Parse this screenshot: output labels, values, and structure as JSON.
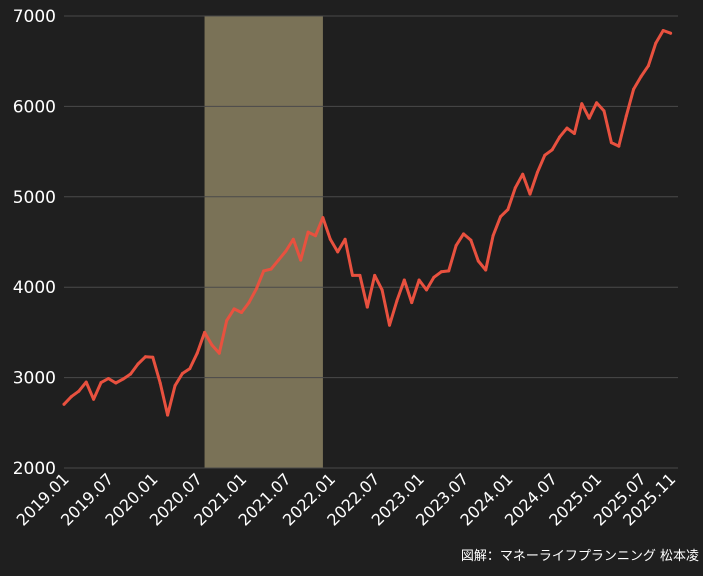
{
  "credit": "図解：マネーライフプランニング 松本凌",
  "colors": {
    "background": "#1f1f1f",
    "line": "#e8513f",
    "band": "#7a7257",
    "grid": "#4a4a4a",
    "text": "#ffffff"
  },
  "chart_data": {
    "type": "line",
    "title": "",
    "xlabel": "",
    "ylabel": "",
    "ylim": [
      2000,
      7000
    ],
    "yticks": [
      2000,
      3000,
      4000,
      5000,
      6000,
      7000
    ],
    "xlim": [
      "2019.01",
      "2025.12"
    ],
    "xticks": [
      "2019.01",
      "2019.07",
      "2020.01",
      "2020.07",
      "2021.01",
      "2021.07",
      "2022.01",
      "2022.07",
      "2023.01",
      "2023.07",
      "2024.01",
      "2024.07",
      "2025.01",
      "2025.07",
      "2025.11"
    ],
    "grid": "horizontal",
    "highlight_band": {
      "x_start": "2020.08",
      "x_end": "2021.12"
    },
    "series": [
      {
        "x": [
          "2019.01",
          "2019.02",
          "2019.03",
          "2019.04",
          "2019.05",
          "2019.06",
          "2019.07",
          "2019.08",
          "2019.09",
          "2019.10",
          "2019.11",
          "2019.12",
          "2020.01",
          "2020.02",
          "2020.03",
          "2020.04",
          "2020.05",
          "2020.06",
          "2020.07",
          "2020.08",
          "2020.09",
          "2020.10",
          "2020.11",
          "2020.12",
          "2021.01",
          "2021.02",
          "2021.03",
          "2021.04",
          "2021.05",
          "2021.06",
          "2021.07",
          "2021.08",
          "2021.09",
          "2021.10",
          "2021.11",
          "2021.12",
          "2022.01",
          "2022.02",
          "2022.03",
          "2022.04",
          "2022.05",
          "2022.06",
          "2022.07",
          "2022.08",
          "2022.09",
          "2022.10",
          "2022.11",
          "2022.12",
          "2023.01",
          "2023.02",
          "2023.03",
          "2023.04",
          "2023.05",
          "2023.06",
          "2023.07",
          "2023.08",
          "2023.09",
          "2023.10",
          "2023.11",
          "2023.12",
          "2024.01",
          "2024.02",
          "2024.03",
          "2024.04",
          "2024.05",
          "2024.06",
          "2024.07",
          "2024.08",
          "2024.09",
          "2024.10",
          "2024.11",
          "2024.12",
          "2025.01",
          "2025.02",
          "2025.03",
          "2025.04",
          "2025.05",
          "2025.06",
          "2025.07",
          "2025.08",
          "2025.09",
          "2025.10",
          "2025.11"
        ],
        "values": [
          2705,
          2790,
          2850,
          2950,
          2760,
          2945,
          2990,
          2940,
          2985,
          3040,
          3150,
          3230,
          3225,
          2940,
          2585,
          2910,
          3045,
          3100,
          3270,
          3500,
          3360,
          3270,
          3630,
          3760,
          3720,
          3830,
          3980,
          4180,
          4200,
          4300,
          4400,
          4530,
          4300,
          4610,
          4570,
          4770,
          4530,
          4390,
          4530,
          4130,
          4130,
          3780,
          4130,
          3970,
          3580,
          3850,
          4080,
          3830,
          4080,
          3970,
          4110,
          4170,
          4180,
          4460,
          4590,
          4520,
          4290,
          4190,
          4570,
          4780,
          4860,
          5100,
          5250,
          5030,
          5270,
          5460,
          5520,
          5660,
          5760,
          5700,
          6030,
          5870,
          6040,
          5950,
          5600,
          5560,
          5890,
          6190,
          6330,
          6450,
          6700,
          6840,
          6810
        ]
      }
    ]
  }
}
